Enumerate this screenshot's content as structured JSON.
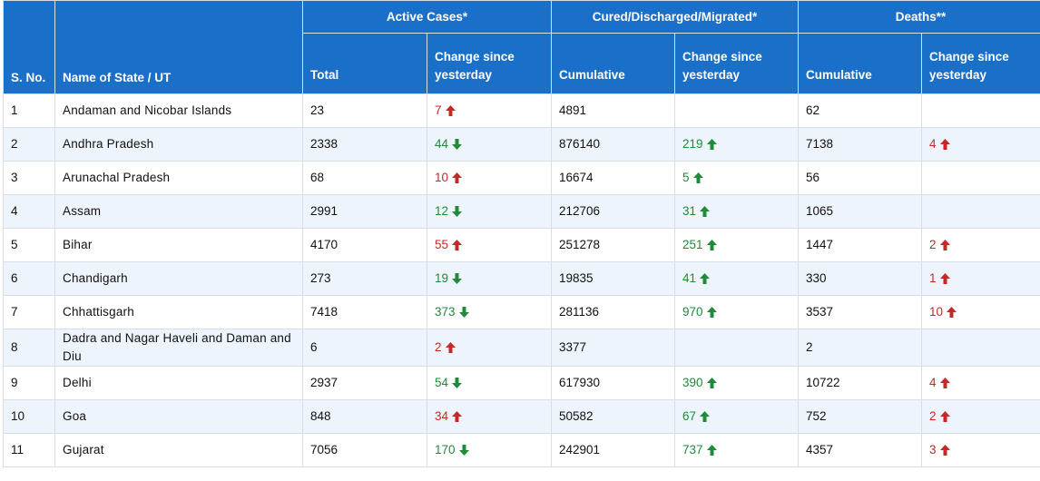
{
  "header": {
    "sno": "S. No.",
    "state": "Name of State / UT",
    "active_group": "Active Cases*",
    "cured_group": "Cured/Discharged/Migrated*",
    "deaths_group": "Deaths**",
    "total": "Total",
    "change": "Change since yesterday",
    "cumulative": "Cumulative"
  },
  "colors": {
    "header_bg": "#1a6fc9",
    "increase_red": "#c62828",
    "decrease_green": "#1f8a3a",
    "row_alt": "#eef4fb"
  },
  "rows": [
    {
      "sno": "1",
      "state": "Andaman and Nicobar Islands",
      "active": "23",
      "active_change": "7",
      "active_dir": "up",
      "cured": "4891",
      "cured_change": "",
      "deaths": "62",
      "deaths_change": ""
    },
    {
      "sno": "2",
      "state": "Andhra Pradesh",
      "active": "2338",
      "active_change": "44",
      "active_dir": "down",
      "cured": "876140",
      "cured_change": "219",
      "deaths": "7138",
      "deaths_change": "4"
    },
    {
      "sno": "3",
      "state": "Arunachal Pradesh",
      "active": "68",
      "active_change": "10",
      "active_dir": "up",
      "cured": "16674",
      "cured_change": "5",
      "deaths": "56",
      "deaths_change": ""
    },
    {
      "sno": "4",
      "state": "Assam",
      "active": "2991",
      "active_change": "12",
      "active_dir": "down",
      "cured": "212706",
      "cured_change": "31",
      "deaths": "1065",
      "deaths_change": ""
    },
    {
      "sno": "5",
      "state": "Bihar",
      "active": "4170",
      "active_change": "55",
      "active_dir": "up",
      "cured": "251278",
      "cured_change": "251",
      "deaths": "1447",
      "deaths_change": "2"
    },
    {
      "sno": "6",
      "state": "Chandigarh",
      "active": "273",
      "active_change": "19",
      "active_dir": "down",
      "cured": "19835",
      "cured_change": "41",
      "deaths": "330",
      "deaths_change": "1"
    },
    {
      "sno": "7",
      "state": "Chhattisgarh",
      "active": "7418",
      "active_change": "373",
      "active_dir": "down",
      "cured": "281136",
      "cured_change": "970",
      "deaths": "3537",
      "deaths_change": "10"
    },
    {
      "sno": "8",
      "state": "Dadra and Nagar Haveli and Daman and Diu",
      "active": "6",
      "active_change": "2",
      "active_dir": "up",
      "cured": "3377",
      "cured_change": "",
      "deaths": "2",
      "deaths_change": ""
    },
    {
      "sno": "9",
      "state": "Delhi",
      "active": "2937",
      "active_change": "54",
      "active_dir": "down",
      "cured": "617930",
      "cured_change": "390",
      "deaths": "10722",
      "deaths_change": "4"
    },
    {
      "sno": "10",
      "state": "Goa",
      "active": "848",
      "active_change": "34",
      "active_dir": "up",
      "cured": "50582",
      "cured_change": "67",
      "deaths": "752",
      "deaths_change": "2"
    },
    {
      "sno": "11",
      "state": "Gujarat",
      "active": "7056",
      "active_change": "170",
      "active_dir": "down",
      "cured": "242901",
      "cured_change": "737",
      "deaths": "4357",
      "deaths_change": "3"
    }
  ]
}
